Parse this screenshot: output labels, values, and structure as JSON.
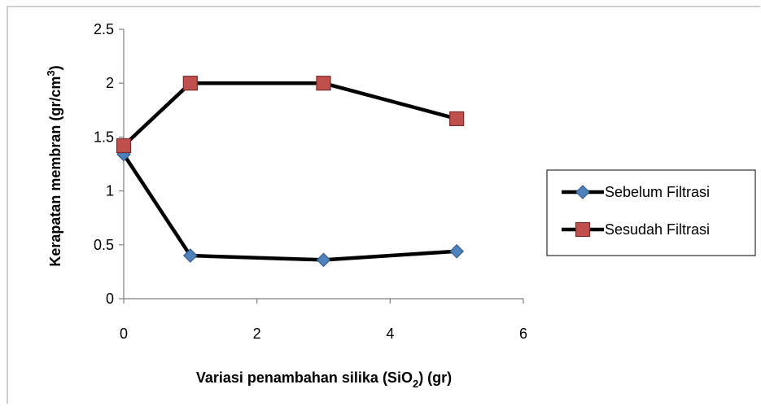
{
  "chart_data": {
    "type": "line",
    "x_values": [
      0,
      1,
      3,
      5
    ],
    "xlabel": {
      "main": "Variasi penambahan silika (SiO",
      "subscript": "2",
      "tail": ")  (gr)"
    },
    "ylabel": {
      "main": "Kerapatan membran (gr/cm",
      "superscript": "3",
      "tail": ")"
    },
    "xlim": [
      0,
      6
    ],
    "ylim": [
      0,
      2.5
    ],
    "x_ticks": [
      "0",
      "2",
      "4",
      "6"
    ],
    "x_tick_values": [
      0,
      2,
      4,
      6
    ],
    "y_ticks": [
      "0",
      "0.5",
      "1",
      "1.5",
      "2",
      "2.5"
    ],
    "y_tick_values": [
      0,
      0.5,
      1,
      1.5,
      2,
      2.5
    ],
    "grid": false,
    "legend_position": "right",
    "series": [
      {
        "name": "Sebelum Filtrasi",
        "marker": "diamond",
        "color": "#4f81bd",
        "values": [
          1.34,
          0.4,
          0.36,
          0.44
        ]
      },
      {
        "name": "Sesudah Filtrasi",
        "marker": "square",
        "color": "#c0504d",
        "values": [
          1.42,
          2.0,
          2.0,
          1.67
        ]
      }
    ]
  }
}
